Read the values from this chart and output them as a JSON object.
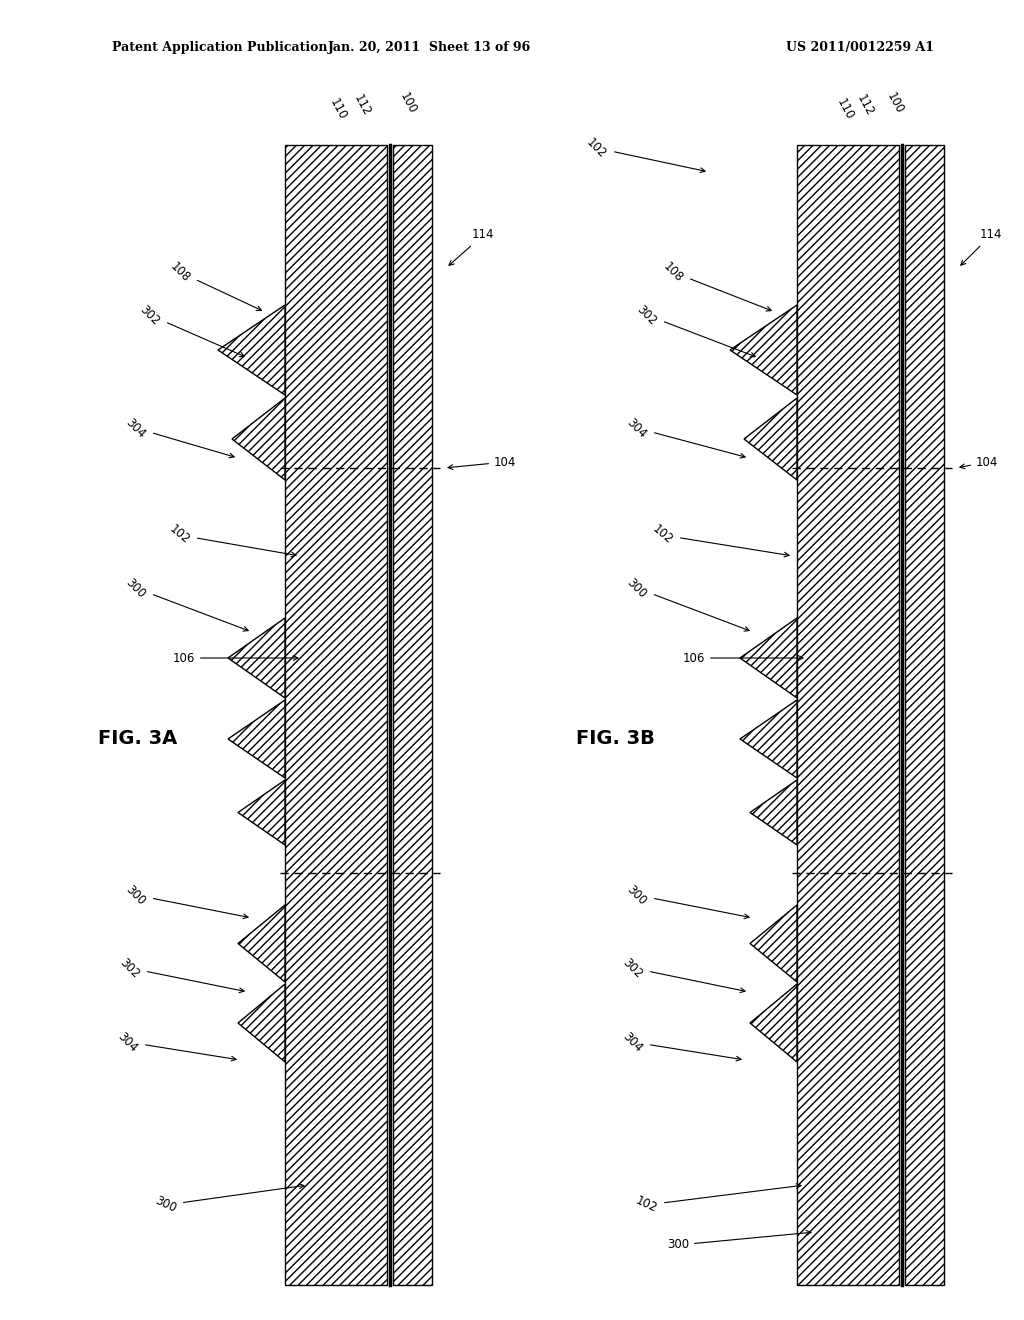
{
  "header_left": "Patent Application Publication",
  "header_center": "Jan. 20, 2011  Sheet 13 of 96",
  "header_right": "US 2011/0012259 A1",
  "fig_label_A": "FIG. 3A",
  "fig_label_B": "FIG. 3B",
  "background_color": "#ffffff"
}
